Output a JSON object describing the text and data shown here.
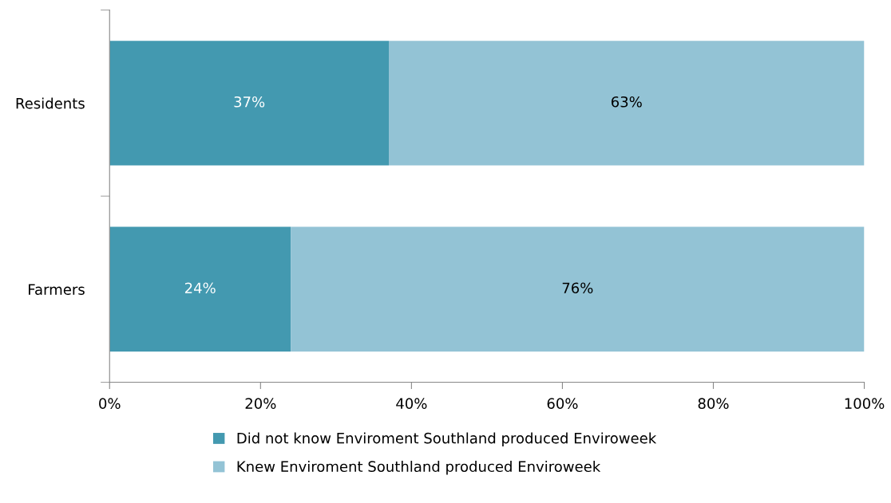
{
  "chart_data": {
    "type": "bar",
    "orientation": "horizontal",
    "stacked": true,
    "categories": [
      "Residents",
      "Farmers"
    ],
    "series": [
      {
        "name": "Did not know Enviroment Southland produced Enviroweek",
        "color": "#4399b0",
        "values": [
          37,
          24
        ],
        "value_labels": [
          "37%",
          "24%"
        ]
      },
      {
        "name": "Knew Enviroment Southland produced Enviroweek",
        "color": "#93c3d5",
        "values": [
          63,
          76
        ],
        "value_labels": [
          "63%",
          "76%"
        ]
      }
    ],
    "xlim": [
      0,
      100
    ],
    "xticks": [
      {
        "value": 0,
        "label": "0%"
      },
      {
        "value": 20,
        "label": "20%"
      },
      {
        "value": 40,
        "label": "40%"
      },
      {
        "value": 60,
        "label": "60%"
      },
      {
        "value": 80,
        "label": "80%"
      },
      {
        "value": 100,
        "label": "100%"
      }
    ],
    "grid": false,
    "legend": "bottom"
  }
}
